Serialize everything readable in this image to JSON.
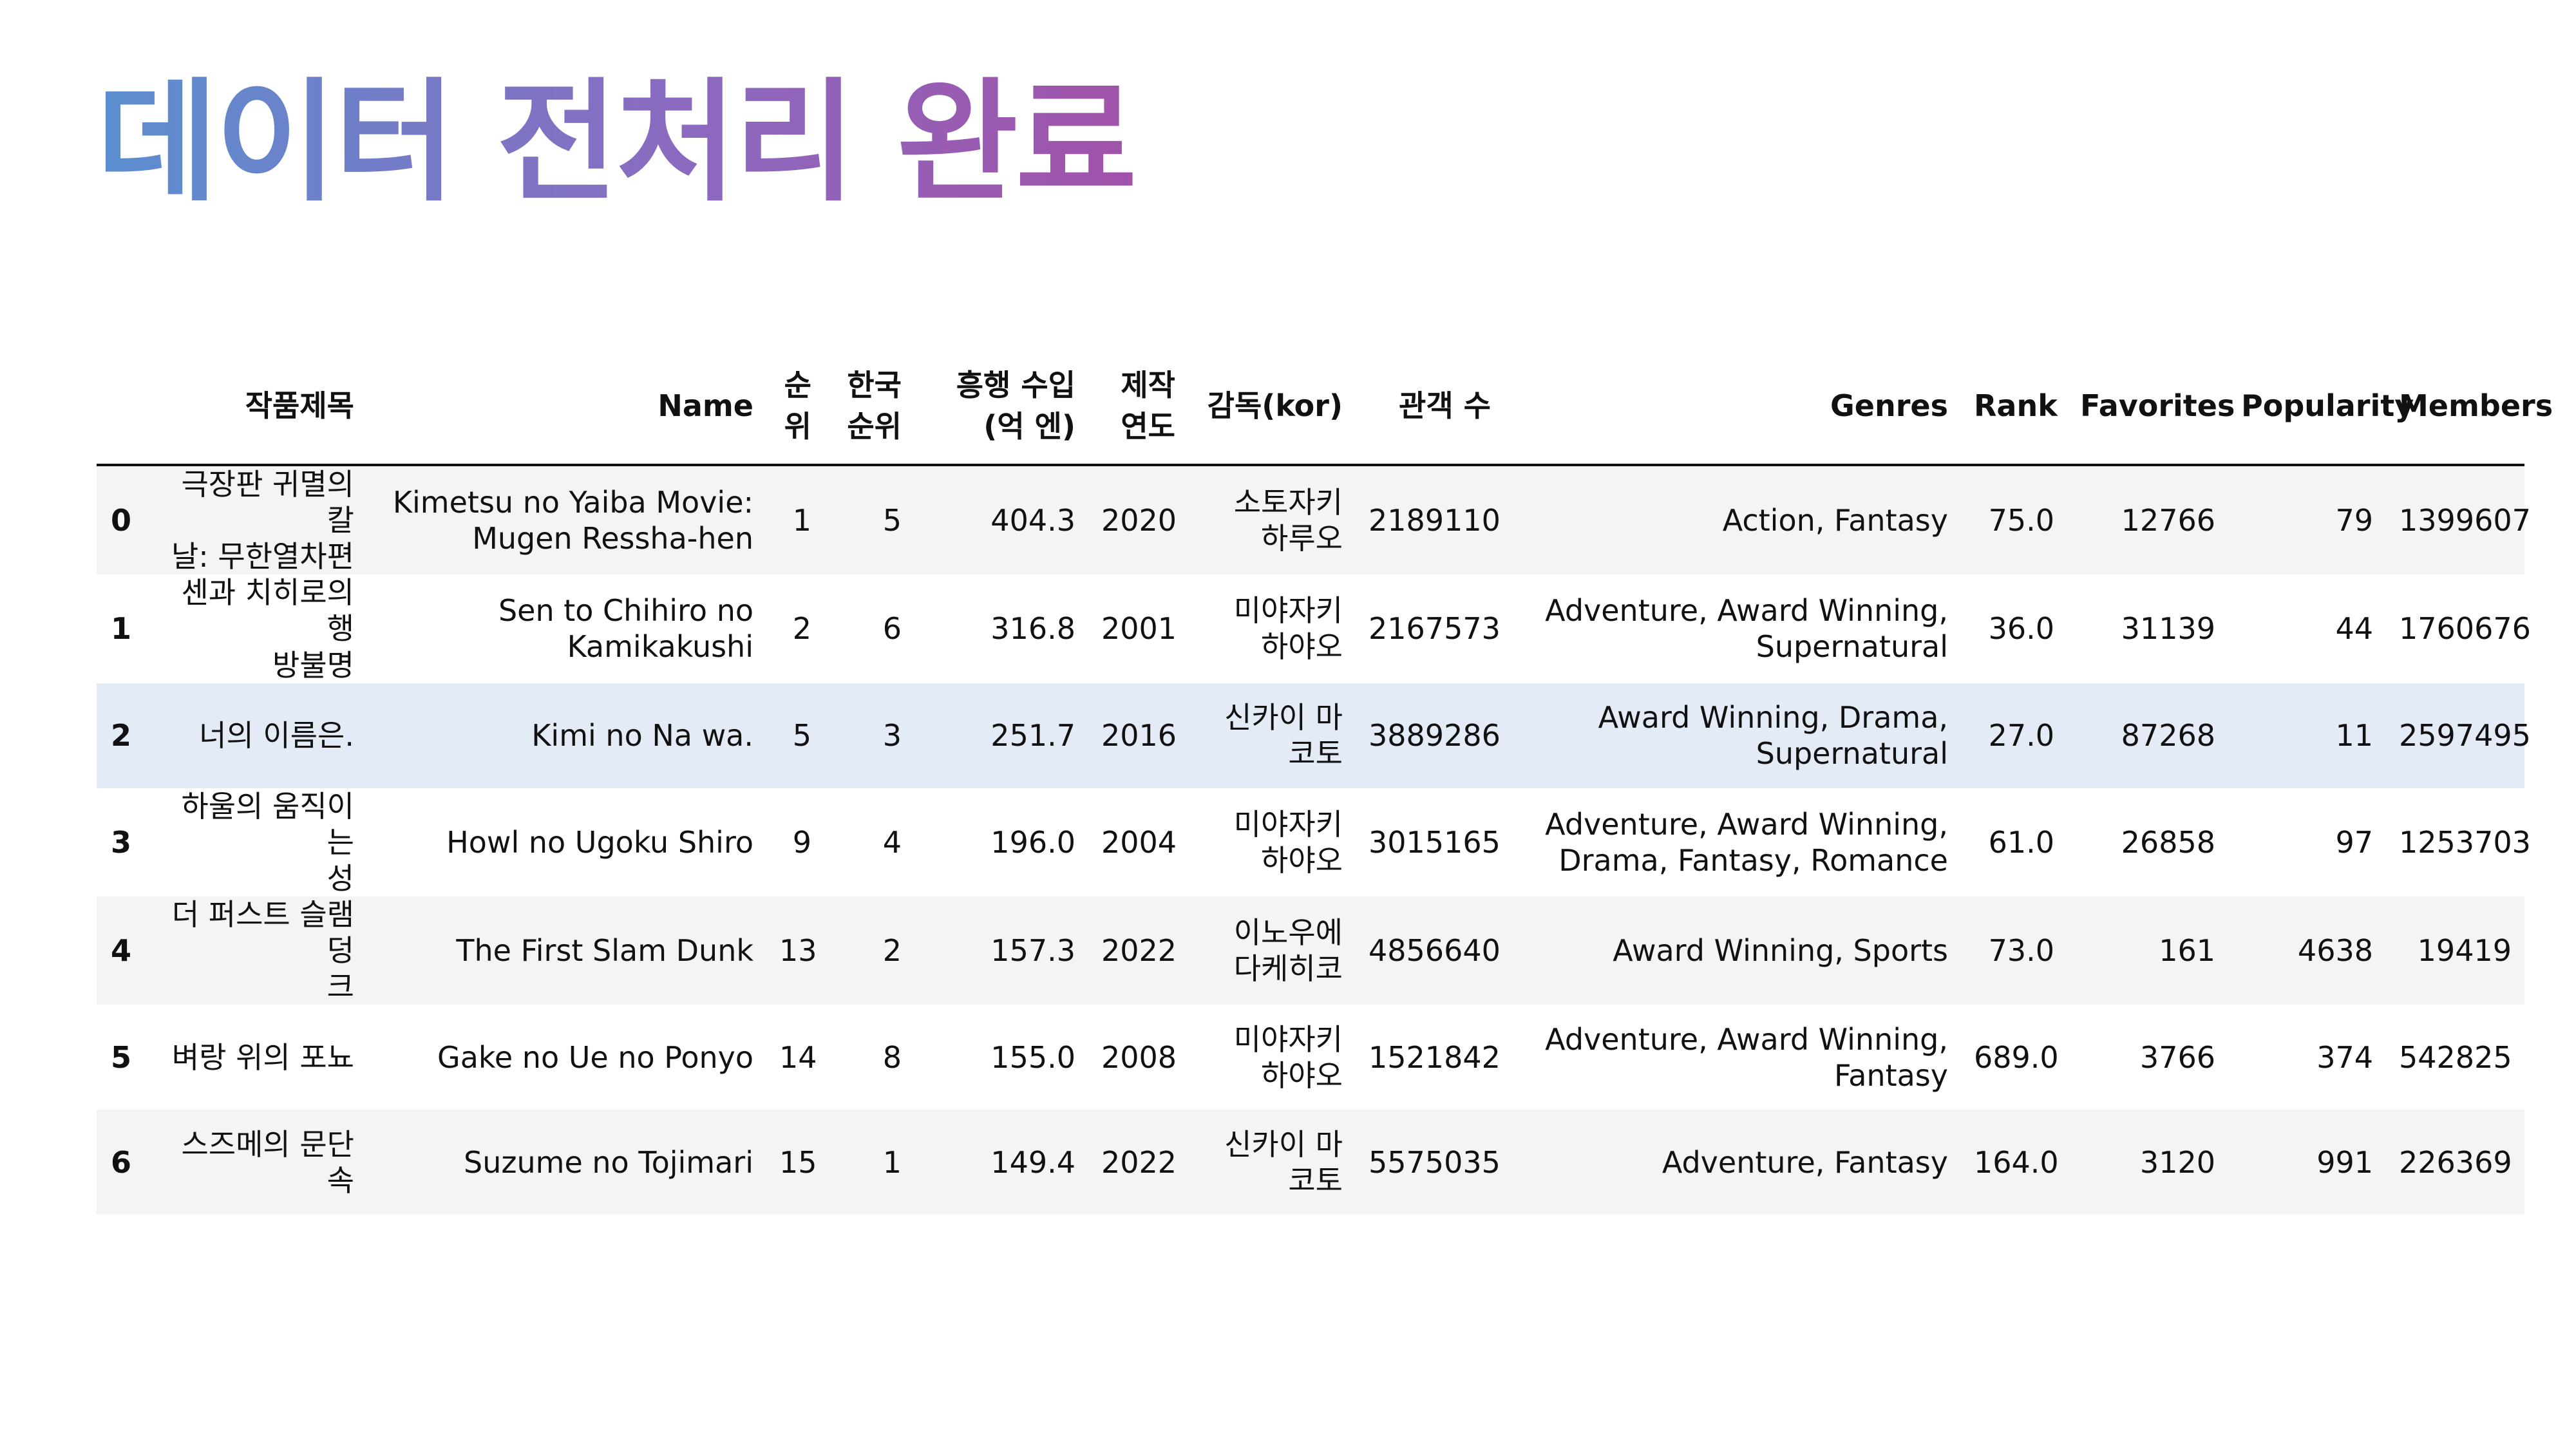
{
  "title": "데이터 전처리 완료",
  "table": {
    "columns": [
      "",
      "작품제목",
      "Name",
      "순\n위",
      "한국\n순위",
      "흥행 수입\n(억 엔)",
      "제작\n연도",
      "감독(kor)",
      "관객 수",
      "Genres",
      "Rank",
      "Favorites",
      "Popularity",
      "Members"
    ],
    "rows": [
      [
        "0",
        "극장판 귀멸의 칼\n날: 무한열차편",
        "Kimetsu no Yaiba Movie:\nMugen Ressha-hen",
        "1",
        "5",
        "404.3",
        "2020",
        "소토자키\n하루오",
        "2189110",
        "Action, Fantasy",
        "75.0",
        "12766",
        "79",
        "1399607"
      ],
      [
        "1",
        "센과 치히로의 행\n방불명",
        "Sen to Chihiro no\nKamikakushi",
        "2",
        "6",
        "316.8",
        "2001",
        "미야자키\n하야오",
        "2167573",
        "Adventure, Award Winning,\nSupernatural",
        "36.0",
        "31139",
        "44",
        "1760676"
      ],
      [
        "2",
        "너의 이름은.",
        "Kimi no Na wa.",
        "5",
        "3",
        "251.7",
        "2016",
        "신카이 마\n코토",
        "3889286",
        "Award Winning, Drama,\nSupernatural",
        "27.0",
        "87268",
        "11",
        "2597495"
      ],
      [
        "3",
        "하울의 움직이는\n성",
        "Howl no Ugoku Shiro",
        "9",
        "4",
        "196.0",
        "2004",
        "미야자키\n하야오",
        "3015165",
        "Adventure, Award Winning,\nDrama, Fantasy, Romance",
        "61.0",
        "26858",
        "97",
        "1253703"
      ],
      [
        "4",
        "더 퍼스트 슬램덩\n크",
        "The First Slam Dunk",
        "13",
        "2",
        "157.3",
        "2022",
        "이노우에\n다케히코",
        "4856640",
        "Award Winning, Sports",
        "73.0",
        "161",
        "4638",
        "19419"
      ],
      [
        "5",
        "벼랑 위의 포뇨",
        "Gake no Ue no Ponyo",
        "14",
        "8",
        "155.0",
        "2008",
        "미야자키\n하야오",
        "1521842",
        "Adventure, Award Winning,\nFantasy",
        "689.0",
        "3766",
        "374",
        "542825"
      ],
      [
        "6",
        "스즈메의 문단속",
        "Suzume no Tojimari",
        "15",
        "1",
        "149.4",
        "2022",
        "신카이 마\n코토",
        "5575035",
        "Adventure, Fantasy",
        "164.0",
        "3120",
        "991",
        "226369"
      ]
    ],
    "highlighted_row": 2,
    "colors": {
      "row_stripe": "#f4f4f4",
      "row_highlight": "#e3ebf6",
      "title_gradient_start": "#5b8fd0",
      "title_gradient_end": "#a152a9"
    }
  }
}
